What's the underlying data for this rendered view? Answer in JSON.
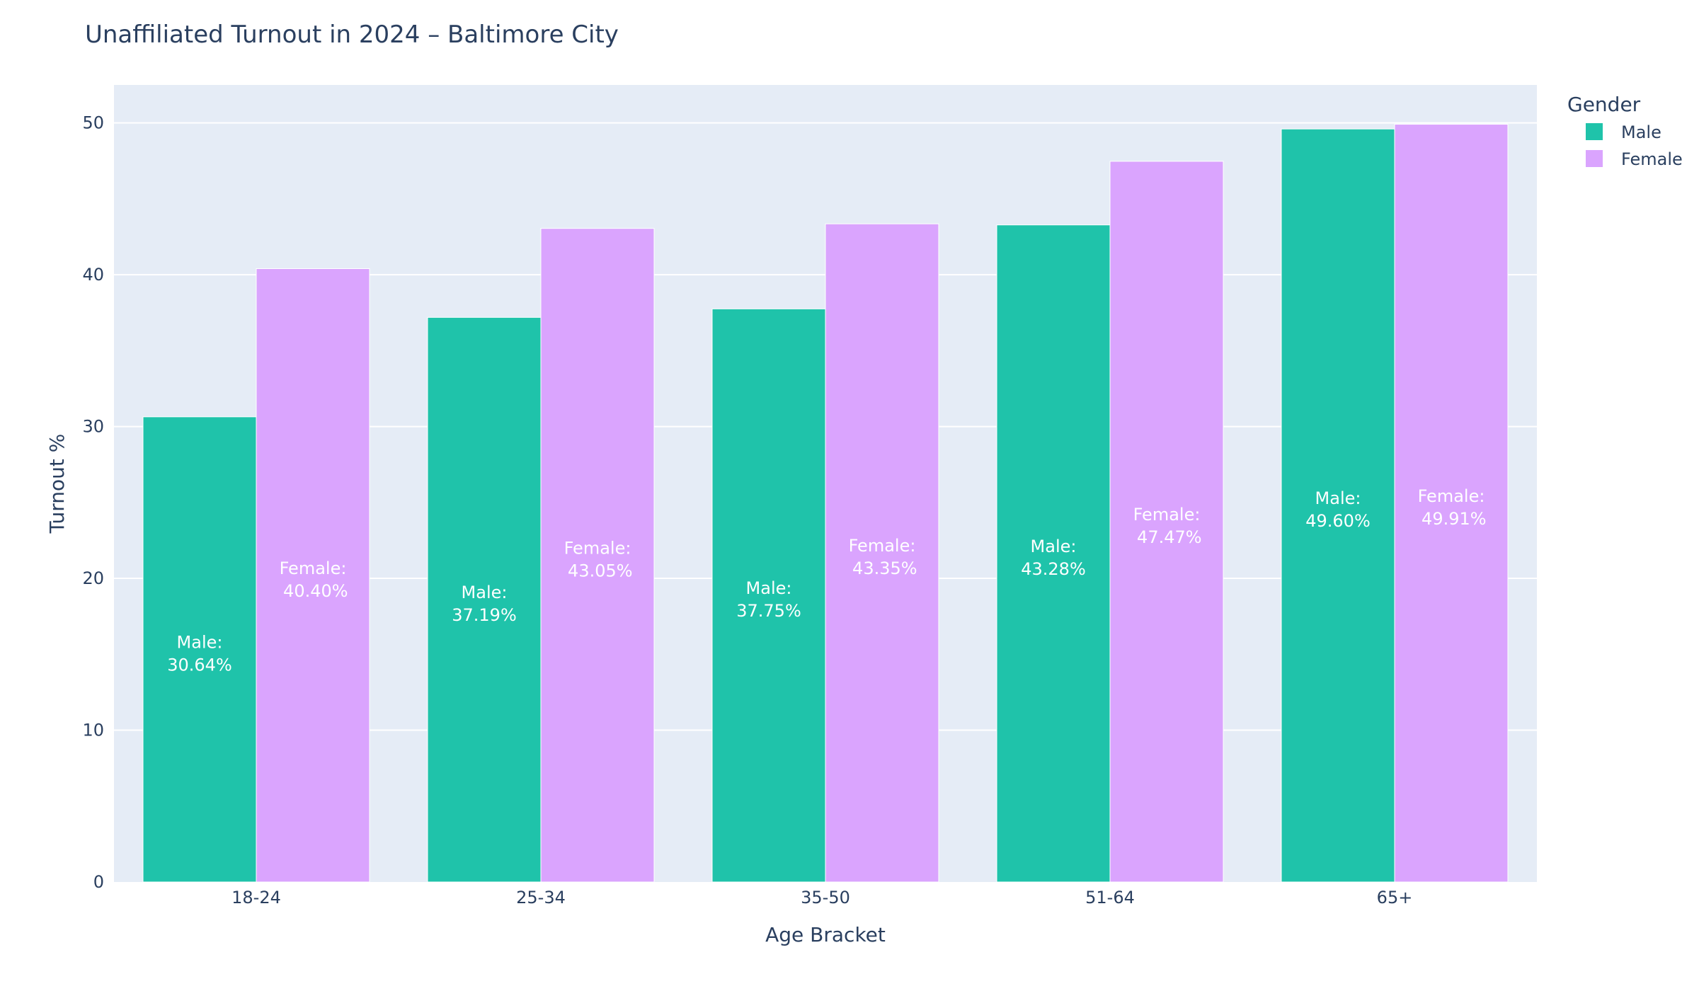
{
  "chart_data": {
    "type": "bar",
    "title": "Unaffiliated Turnout in 2024 – Baltimore City",
    "xlabel": "Age Bracket",
    "ylabel": "Turnout %",
    "ylim": [
      0,
      52.5
    ],
    "yticks": [
      0,
      10,
      20,
      30,
      40,
      50
    ],
    "categories": [
      "18-24",
      "25-34",
      "35-50",
      "51-64",
      "65+"
    ],
    "legend_title": "Gender",
    "legend_position": "top-right",
    "grid": true,
    "series": [
      {
        "name": "Male",
        "color": "#1fc3aa",
        "values": [
          30.64,
          37.19,
          37.75,
          43.28,
          49.6
        ],
        "labels": [
          "Male:\n30.64%",
          "Male:\n37.19%",
          "Male:\n37.75%",
          "Male:\n43.28%",
          "Male:\n49.60%"
        ]
      },
      {
        "name": "Female",
        "color": "#daa4fe",
        "values": [
          40.4,
          43.05,
          43.35,
          47.47,
          49.91
        ],
        "labels": [
          "Female:\n 40.40%",
          "Female:\n 43.05%",
          "Female:\n 43.35%",
          "Female:\n 47.47%",
          "Female:\n 49.91%"
        ]
      }
    ]
  }
}
